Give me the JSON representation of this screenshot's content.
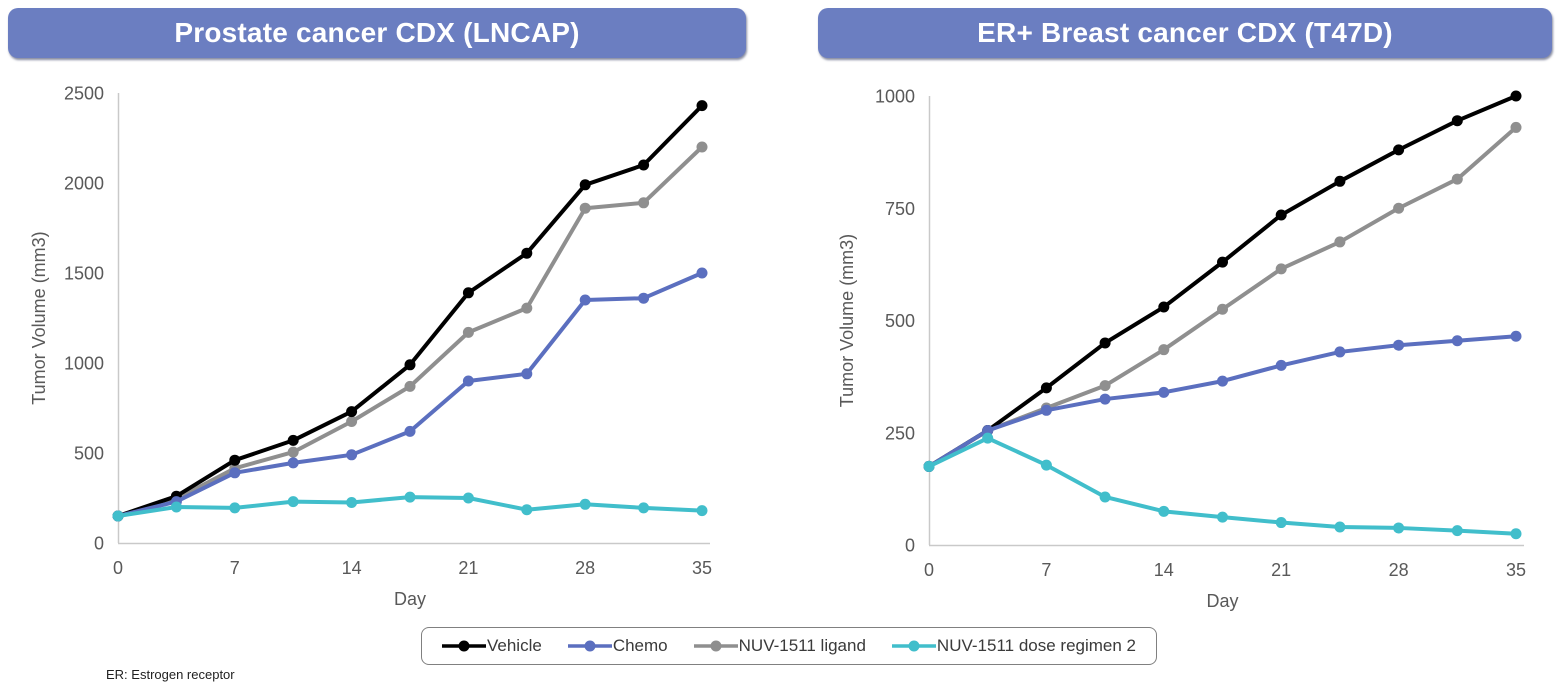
{
  "page": {
    "footer_note": "ER: Estrogen receptor"
  },
  "legend": {
    "items": [
      {
        "label": "Vehicle",
        "color": "#000000"
      },
      {
        "label": "Chemo",
        "color": "#5B6FBF"
      },
      {
        "label": "NUV-1511 ligand",
        "color": "#8F8F8F"
      },
      {
        "label": "NUV-1511 dose regimen 2",
        "color": "#41BECB"
      }
    ]
  },
  "chart_data": [
    {
      "type": "line",
      "title": "Prostate cancer CDX (LNCAP)",
      "xlabel": "Day",
      "ylabel": "Tumor Volume (mm3)",
      "x": [
        0,
        3.5,
        7,
        10.5,
        14,
        17.5,
        21,
        24.5,
        28,
        31.5,
        35
      ],
      "xticks": [
        0,
        7,
        14,
        21,
        28,
        35
      ],
      "yticks": [
        0,
        500,
        1000,
        1500,
        2000,
        2500
      ],
      "xlim": [
        0,
        35
      ],
      "ylim": [
        0,
        2500
      ],
      "grid": false,
      "legend_position": "bottom-shared",
      "series": [
        {
          "name": "Vehicle",
          "color": "#000000",
          "values": [
            150,
            260,
            460,
            570,
            730,
            990,
            1390,
            1610,
            1990,
            2100,
            2430
          ]
        },
        {
          "name": "Chemo",
          "color": "#5B6FBF",
          "values": [
            150,
            230,
            390,
            445,
            490,
            620,
            900,
            940,
            1350,
            1360,
            1500
          ]
        },
        {
          "name": "NUV-1511 ligand",
          "color": "#8F8F8F",
          "values": [
            150,
            245,
            415,
            505,
            675,
            870,
            1170,
            1305,
            1860,
            1890,
            2200
          ]
        },
        {
          "name": "NUV-1511 dose regimen 2",
          "color": "#41BECB",
          "values": [
            150,
            200,
            195,
            230,
            225,
            255,
            250,
            185,
            215,
            195,
            180
          ]
        }
      ]
    },
    {
      "type": "line",
      "title": "ER+ Breast cancer CDX (T47D)",
      "xlabel": "Day",
      "ylabel": "Tumor Volume (mm3)",
      "x": [
        0,
        3.5,
        7,
        10.5,
        14,
        17.5,
        21,
        24.5,
        28,
        31.5,
        35
      ],
      "xticks": [
        0,
        7,
        14,
        21,
        28,
        35
      ],
      "yticks": [
        0,
        250,
        500,
        750,
        1000
      ],
      "xlim": [
        0,
        35
      ],
      "ylim": [
        0,
        1000
      ],
      "grid": false,
      "legend_position": "bottom-shared",
      "series": [
        {
          "name": "Vehicle",
          "color": "#000000",
          "values": [
            175,
            255,
            350,
            450,
            530,
            630,
            735,
            810,
            880,
            945,
            1000
          ]
        },
        {
          "name": "Chemo",
          "color": "#5B6FBF",
          "values": [
            175,
            255,
            300,
            325,
            340,
            365,
            400,
            430,
            445,
            455,
            465
          ]
        },
        {
          "name": "NUV-1511 ligand",
          "color": "#8F8F8F",
          "values": [
            175,
            255,
            305,
            355,
            435,
            525,
            615,
            675,
            750,
            815,
            930
          ]
        },
        {
          "name": "NUV-1511 dose regimen 2",
          "color": "#41BECB",
          "values": [
            175,
            238,
            178,
            107,
            75,
            62,
            50,
            40,
            38,
            32,
            25
          ]
        }
      ]
    }
  ]
}
